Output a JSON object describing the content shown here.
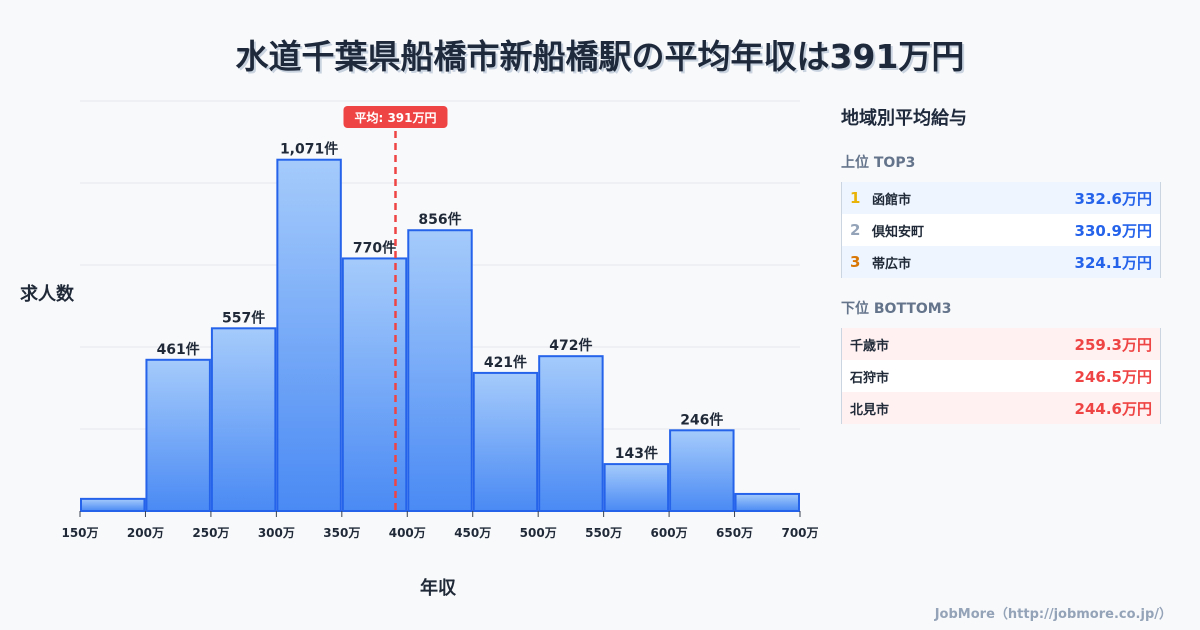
{
  "chart_data": {
    "type": "bar",
    "title": "水道千葉県船橋市新船橋駅の平均年収は391万円",
    "xlabel": "年収",
    "ylabel": "求人数",
    "bin_edges": [
      150,
      200,
      250,
      300,
      350,
      400,
      450,
      500,
      550,
      600,
      650,
      700
    ],
    "tick_labels": [
      "150万",
      "200万",
      "250万",
      "300万",
      "350万",
      "400万",
      "450万",
      "500万",
      "550万",
      "600万",
      "650万",
      "700万"
    ],
    "values": [
      37,
      461,
      557,
      1071,
      770,
      856,
      421,
      472,
      143,
      246,
      52
    ],
    "data_labels": [
      "",
      "461件",
      "557件",
      "1,071件",
      "770件",
      "856件",
      "421件",
      "472件",
      "143件",
      "246件",
      ""
    ],
    "ylim": [
      0,
      1250
    ],
    "grid": true,
    "mean": 391,
    "mean_label": "平均: 391万円"
  },
  "panel": {
    "title": "地域別平均給与",
    "top_label": "上位 TOP3",
    "top": [
      {
        "rank": "1",
        "name": "函館市",
        "value": "332.6万円",
        "color": "#eab308"
      },
      {
        "rank": "2",
        "name": "倶知安町",
        "value": "330.9万円",
        "color": "#94a3b8"
      },
      {
        "rank": "3",
        "name": "帯広市",
        "value": "324.1万円",
        "color": "#d97706"
      }
    ],
    "bottom_label": "下位 BOTTOM3",
    "bottom": [
      {
        "name": "千歳市",
        "value": "259.3万円"
      },
      {
        "name": "石狩市",
        "value": "246.5万円"
      },
      {
        "name": "北見市",
        "value": "244.6万円"
      }
    ]
  },
  "footer": "JobMore（http://jobmore.co.jp/）"
}
